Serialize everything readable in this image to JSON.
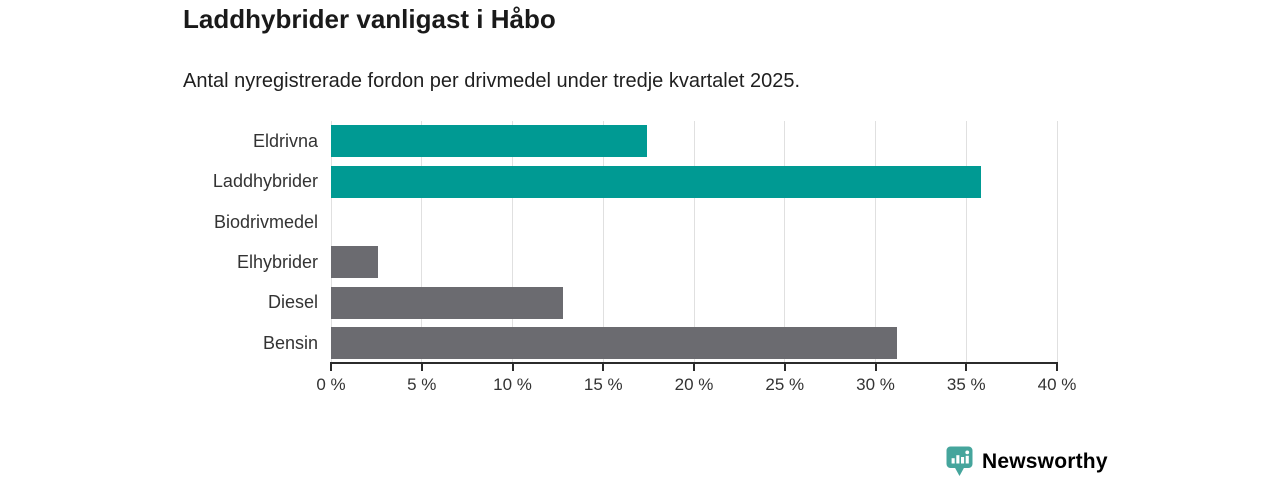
{
  "chart_data": {
    "type": "bar",
    "orientation": "horizontal",
    "title": "Laddhybrider vanligast i Håbo",
    "subtitle": "Antal nyregistrerade fordon per drivmedel under tredje kvartalet 2025.",
    "categories": [
      "Eldrivna",
      "Laddhybrider",
      "Biodrivmedel",
      "Elhybrider",
      "Diesel",
      "Bensin"
    ],
    "values": [
      17.4,
      35.8,
      0,
      2.6,
      12.8,
      31.2
    ],
    "bar_colors": [
      "#009a93",
      "#009a93",
      "#6b6b70",
      "#6b6b70",
      "#6b6b70",
      "#6b6b70"
    ],
    "highlight_color": "#009a93",
    "default_color": "#6b6b70",
    "xlim": [
      0,
      40
    ],
    "xticks": [
      0,
      5,
      10,
      15,
      20,
      25,
      30,
      35,
      40
    ],
    "xtick_suffix": " %",
    "xlabel": "",
    "ylabel": "",
    "grid": true,
    "legend": "none"
  },
  "colors": {
    "gridline": "#e0e0e0",
    "axis": "#2b2b2b",
    "tick_text": "#333333",
    "title_text": "#1a1a1a",
    "logo_icon": "#45a59c",
    "logo_text": "#3f9e96"
  },
  "footer": {
    "brand": "Newsworthy"
  }
}
